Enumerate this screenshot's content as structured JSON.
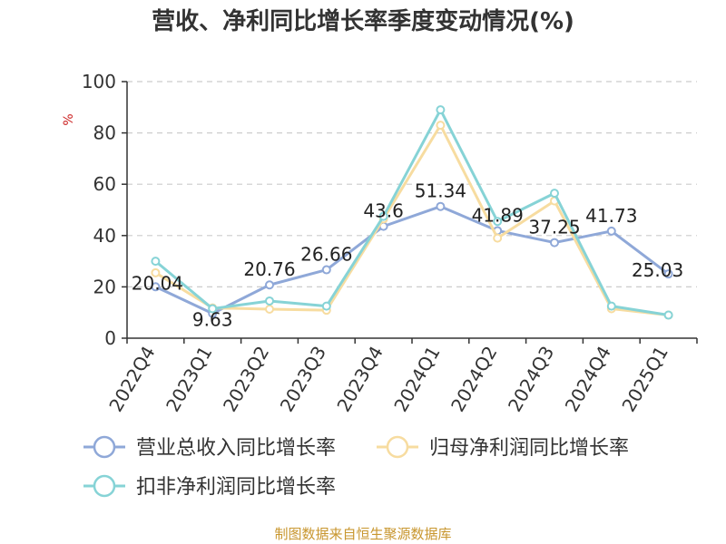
{
  "chart_data": {
    "type": "line",
    "title": "营收、净利同比增长率季度变动情况(%)",
    "ylabel": "%",
    "ylim": [
      0,
      100
    ],
    "yticks": [
      0,
      20,
      40,
      60,
      80,
      100
    ],
    "grid": true,
    "categories": [
      "2022Q4",
      "2023Q1",
      "2023Q2",
      "2023Q3",
      "2023Q4",
      "2024Q1",
      "2024Q2",
      "2024Q3",
      "2024Q4",
      "2025Q1"
    ],
    "series": [
      {
        "name": "营业总收入同比增长率",
        "color": "#8fa8d8",
        "values": [
          20.04,
          9.63,
          20.76,
          26.66,
          43.6,
          51.34,
          41.89,
          37.25,
          41.73,
          25.03
        ],
        "data_labels": [
          "20.04",
          "9.63",
          "20.76",
          "26.66",
          "43.6",
          "51.34",
          "41.89",
          "37.25",
          "41.73",
          "25.03"
        ]
      },
      {
        "name": "归母净利润同比增长率",
        "color": "#f7dca0",
        "values": [
          25.5,
          11.8,
          11.3,
          10.9,
          46.5,
          83.0,
          39.0,
          53.5,
          11.5,
          9.0
        ]
      },
      {
        "name": "扣非净利润同比增长率",
        "color": "#86d3d6",
        "values": [
          30.0,
          11.5,
          14.5,
          12.5,
          47.5,
          89.0,
          45.5,
          56.5,
          12.5,
          9.0
        ]
      }
    ],
    "legend_position": "bottom-left"
  },
  "source_text": "制图数据来自恒生聚源数据库"
}
